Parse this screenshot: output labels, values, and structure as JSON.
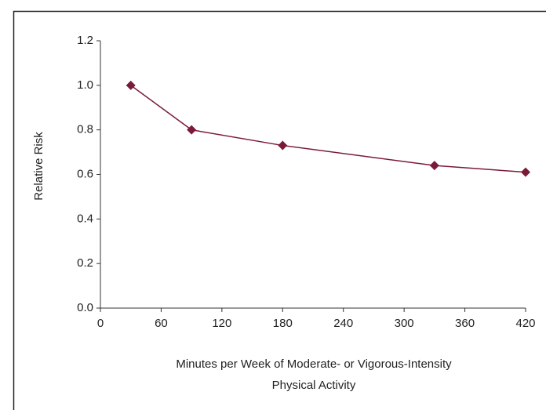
{
  "chart_data": {
    "type": "line",
    "x": [
      30,
      90,
      180,
      330,
      420
    ],
    "series": [
      {
        "color": "#7b1a36",
        "values": [
          1.0,
          0.8,
          0.73,
          0.64,
          0.61
        ]
      }
    ],
    "xlim": [
      0,
      420
    ],
    "xticks": [
      0,
      60,
      120,
      180,
      240,
      300,
      360,
      420
    ],
    "ylim": [
      0,
      1.2
    ],
    "yticks": [
      {
        "value": 0,
        "label": "0.0"
      },
      0.2,
      0.4,
      0.6,
      0.8,
      {
        "value": 1,
        "label": "1.0"
      },
      1.2
    ],
    "y_label": "Relative Risk",
    "x_label": [
      "Minutes per Week of Moderate- or Vigorous-Intensity",
      "Physical Activity"
    ]
  }
}
